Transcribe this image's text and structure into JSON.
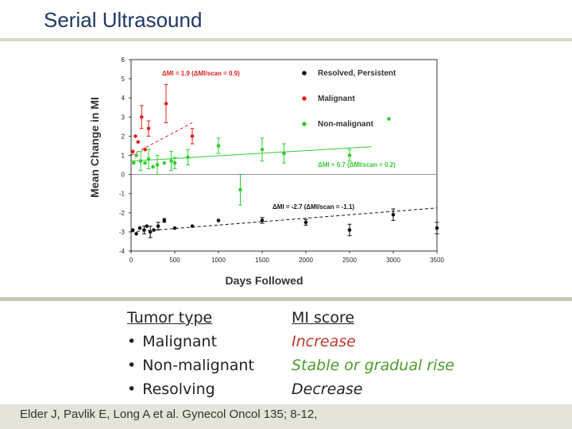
{
  "slide": {
    "title": "Serial Ultrasound"
  },
  "chart_data": {
    "type": "scatter",
    "title": "",
    "xlabel": "Days Followed",
    "ylabel": "Mean Change in MI",
    "xlim": [
      0,
      3500
    ],
    "ylim": [
      -4,
      6
    ],
    "xticks": [
      0,
      500,
      1000,
      1500,
      2000,
      2500,
      3000,
      3500
    ],
    "yticks": [
      -4,
      -3,
      -2,
      -1,
      0,
      1,
      2,
      3,
      4,
      5,
      6
    ],
    "legend_position": "top-right",
    "series": [
      {
        "name": "Resolved, Persistent",
        "color": "#111111",
        "points": [
          [
            20,
            -2.9
          ],
          [
            60,
            -3.1
          ],
          [
            100,
            -2.8
          ],
          [
            150,
            -2.9
          ],
          [
            180,
            -2.7
          ],
          [
            220,
            -3.0
          ],
          [
            260,
            -2.9
          ],
          [
            310,
            -2.7
          ],
          [
            380,
            -2.4
          ],
          [
            500,
            -2.8
          ],
          [
            700,
            -2.7
          ],
          [
            1000,
            -2.4
          ],
          [
            1500,
            -2.4
          ],
          [
            2000,
            -2.5
          ],
          [
            2500,
            -2.9
          ],
          [
            3000,
            -2.1
          ],
          [
            3500,
            -2.8
          ]
        ],
        "errors": [
          0,
          0,
          0,
          0.2,
          0,
          0.3,
          0,
          0.2,
          0.1,
          0,
          0,
          0,
          0.15,
          0.15,
          0.3,
          0.3,
          0.3
        ],
        "trend": {
          "x": [
            0,
            3500
          ],
          "y": [
            -3.0,
            -1.75
          ]
        },
        "annotation": "ΔMI = -2.7 (ΔMI/scan = -1.1)"
      },
      {
        "name": "Malignant",
        "color": "#e02020",
        "points": [
          [
            20,
            1.2
          ],
          [
            50,
            2.0
          ],
          [
            80,
            1.7
          ],
          [
            120,
            3.0
          ],
          [
            160,
            1.3
          ],
          [
            200,
            2.4
          ],
          [
            400,
            3.7
          ],
          [
            700,
            2.0
          ]
        ],
        "errors": [
          0,
          0,
          0,
          0.6,
          0,
          0.4,
          1.0,
          0.4
        ],
        "trend": {
          "x": [
            0,
            700
          ],
          "y": [
            1.0,
            2.7
          ]
        },
        "annotation": "ΔMI = 1.9 (ΔMI/scan = 0.9)"
      },
      {
        "name": "Non-malignant",
        "color": "#33cc33",
        "points": [
          [
            30,
            0.6
          ],
          [
            60,
            1.0
          ],
          [
            110,
            0.7
          ],
          [
            160,
            0.6
          ],
          [
            200,
            0.8
          ],
          [
            250,
            0.4
          ],
          [
            300,
            0.5
          ],
          [
            380,
            0.6
          ],
          [
            460,
            0.7
          ],
          [
            500,
            0.6
          ],
          [
            650,
            0.9
          ],
          [
            1000,
            1.5
          ],
          [
            1250,
            -0.8
          ],
          [
            1500,
            1.3
          ],
          [
            1750,
            1.1
          ],
          [
            2500,
            1.0
          ],
          [
            2950,
            2.9
          ]
        ],
        "errors": [
          0,
          0,
          0.5,
          0,
          0.5,
          0,
          0.5,
          0,
          0.5,
          0.3,
          0.4,
          0.4,
          0.8,
          0.6,
          0.5,
          0.3,
          0
        ],
        "trend": {
          "x": [
            0,
            2750
          ],
          "y": [
            0.7,
            1.45
          ]
        },
        "annotation": "ΔMI = 0.7 (ΔMI/scan = 0.2)"
      }
    ]
  },
  "summary": {
    "col1_header": "Tumor type",
    "col1_items": [
      "Malignant",
      "Non-malignant",
      "Resolving"
    ],
    "col2_header": "MI score",
    "col2_items": [
      {
        "text": "Increase",
        "color": "#c0392b"
      },
      {
        "text": "Stable or gradual rise",
        "color": "#4e9a2e"
      },
      {
        "text": "Decrease",
        "color": "#222222"
      }
    ]
  },
  "citation": "Elder J, Pavlik E, Long A et al. Gynecol Oncol 135; 8-12,"
}
